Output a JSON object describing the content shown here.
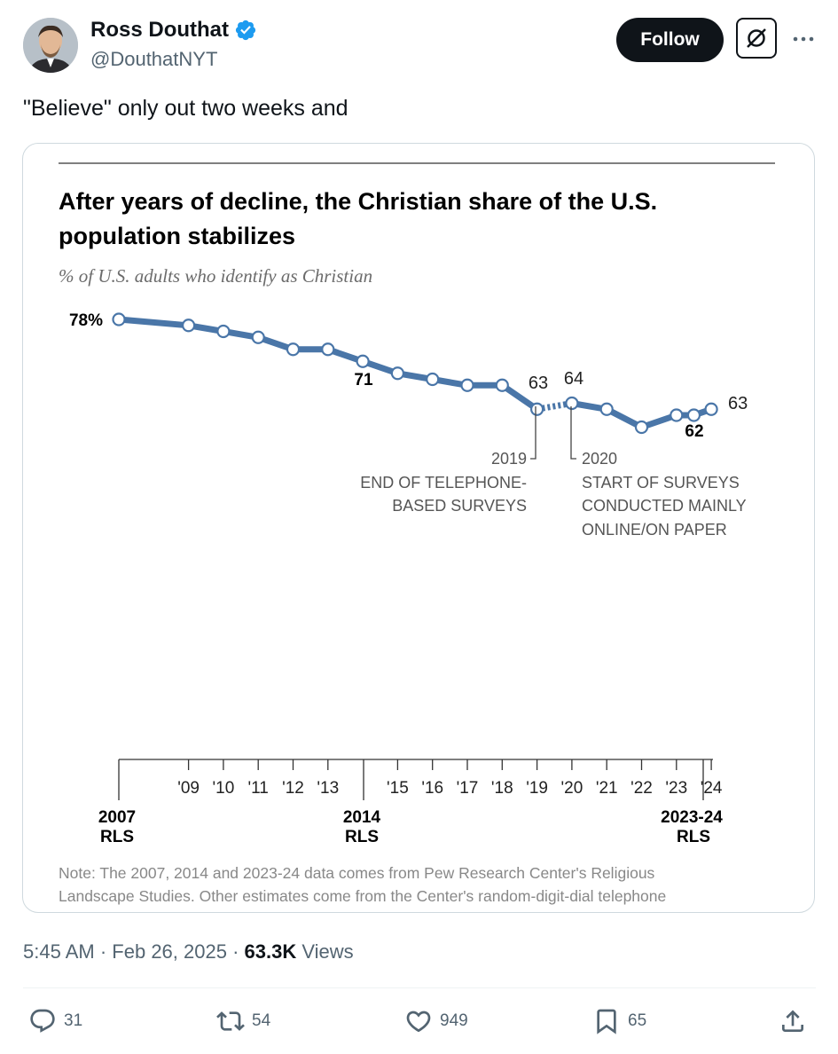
{
  "author": {
    "name": "Ross Douthat",
    "handle": "@DouthatNYT",
    "verified": true
  },
  "buttons": {
    "follow_label": "Follow"
  },
  "tweet": {
    "text": "\"Believe\" only out two weeks and"
  },
  "chart_data": {
    "type": "line",
    "title_line1": "After years of decline, the Christian share of the U.S.",
    "title_line2": "population stabilizes",
    "subtitle": "% of U.S. adults who identify as Christian",
    "series": [
      {
        "segment": "telephone",
        "x": [
          2007,
          2009,
          2010,
          2011,
          2012,
          2013,
          2014,
          2015,
          2016,
          2017,
          2018,
          2019
        ],
        "values": [
          78,
          77,
          76,
          75,
          73,
          73,
          71,
          69,
          68,
          67,
          67,
          63
        ]
      },
      {
        "segment": "online",
        "x": [
          2020,
          2021,
          2022,
          2023,
          2023.5,
          2024
        ],
        "values": [
          64,
          63,
          60,
          62,
          62,
          63
        ]
      }
    ],
    "labels": {
      "start": "78%",
      "y2014": "71",
      "y2019": "63",
      "y2020": "64",
      "y2023_24": "62",
      "y2024": "63"
    },
    "annotations": {
      "a2019_year": "2019",
      "a2019_line1": "END OF TELEPHONE-",
      "a2019_line2": "BASED SURVEYS",
      "a2020_year": "2020",
      "a2020_line1": "START OF SURVEYS",
      "a2020_line2": "CONDUCTED MAINLY",
      "a2020_line3": "ONLINE/ON PAPER"
    },
    "xaxis": {
      "minor_ticks": [
        "'09",
        "'10",
        "'11",
        "'12",
        "'13",
        "'15",
        "'16",
        "'17",
        "'18",
        "'19",
        "'20",
        "'21",
        "'22",
        "'23",
        "'24"
      ],
      "major_2007_year": "2007",
      "major_2007_sub": "RLS",
      "major_2014_year": "2014",
      "major_2014_sub": "RLS",
      "major_2324_year": "2023-24",
      "major_2324_sub": "RLS"
    },
    "note_line1": "Note: The 2007, 2014 and 2023-24 data comes from Pew Research Center's Religious",
    "note_line2": "Landscape Studies. Other estimates come from the Center's random-digit-dial telephone",
    "colors": {
      "line": "#4a76a8",
      "marker_fill": "#ffffff"
    }
  },
  "meta": {
    "time": "5:45 AM",
    "sep1": "·",
    "date": "Feb 26, 2025",
    "sep2": "·",
    "views_count": "63.3K",
    "views_label": "Views"
  },
  "actions": {
    "replies": "31",
    "reposts": "54",
    "likes": "949",
    "bookmarks": "65"
  }
}
